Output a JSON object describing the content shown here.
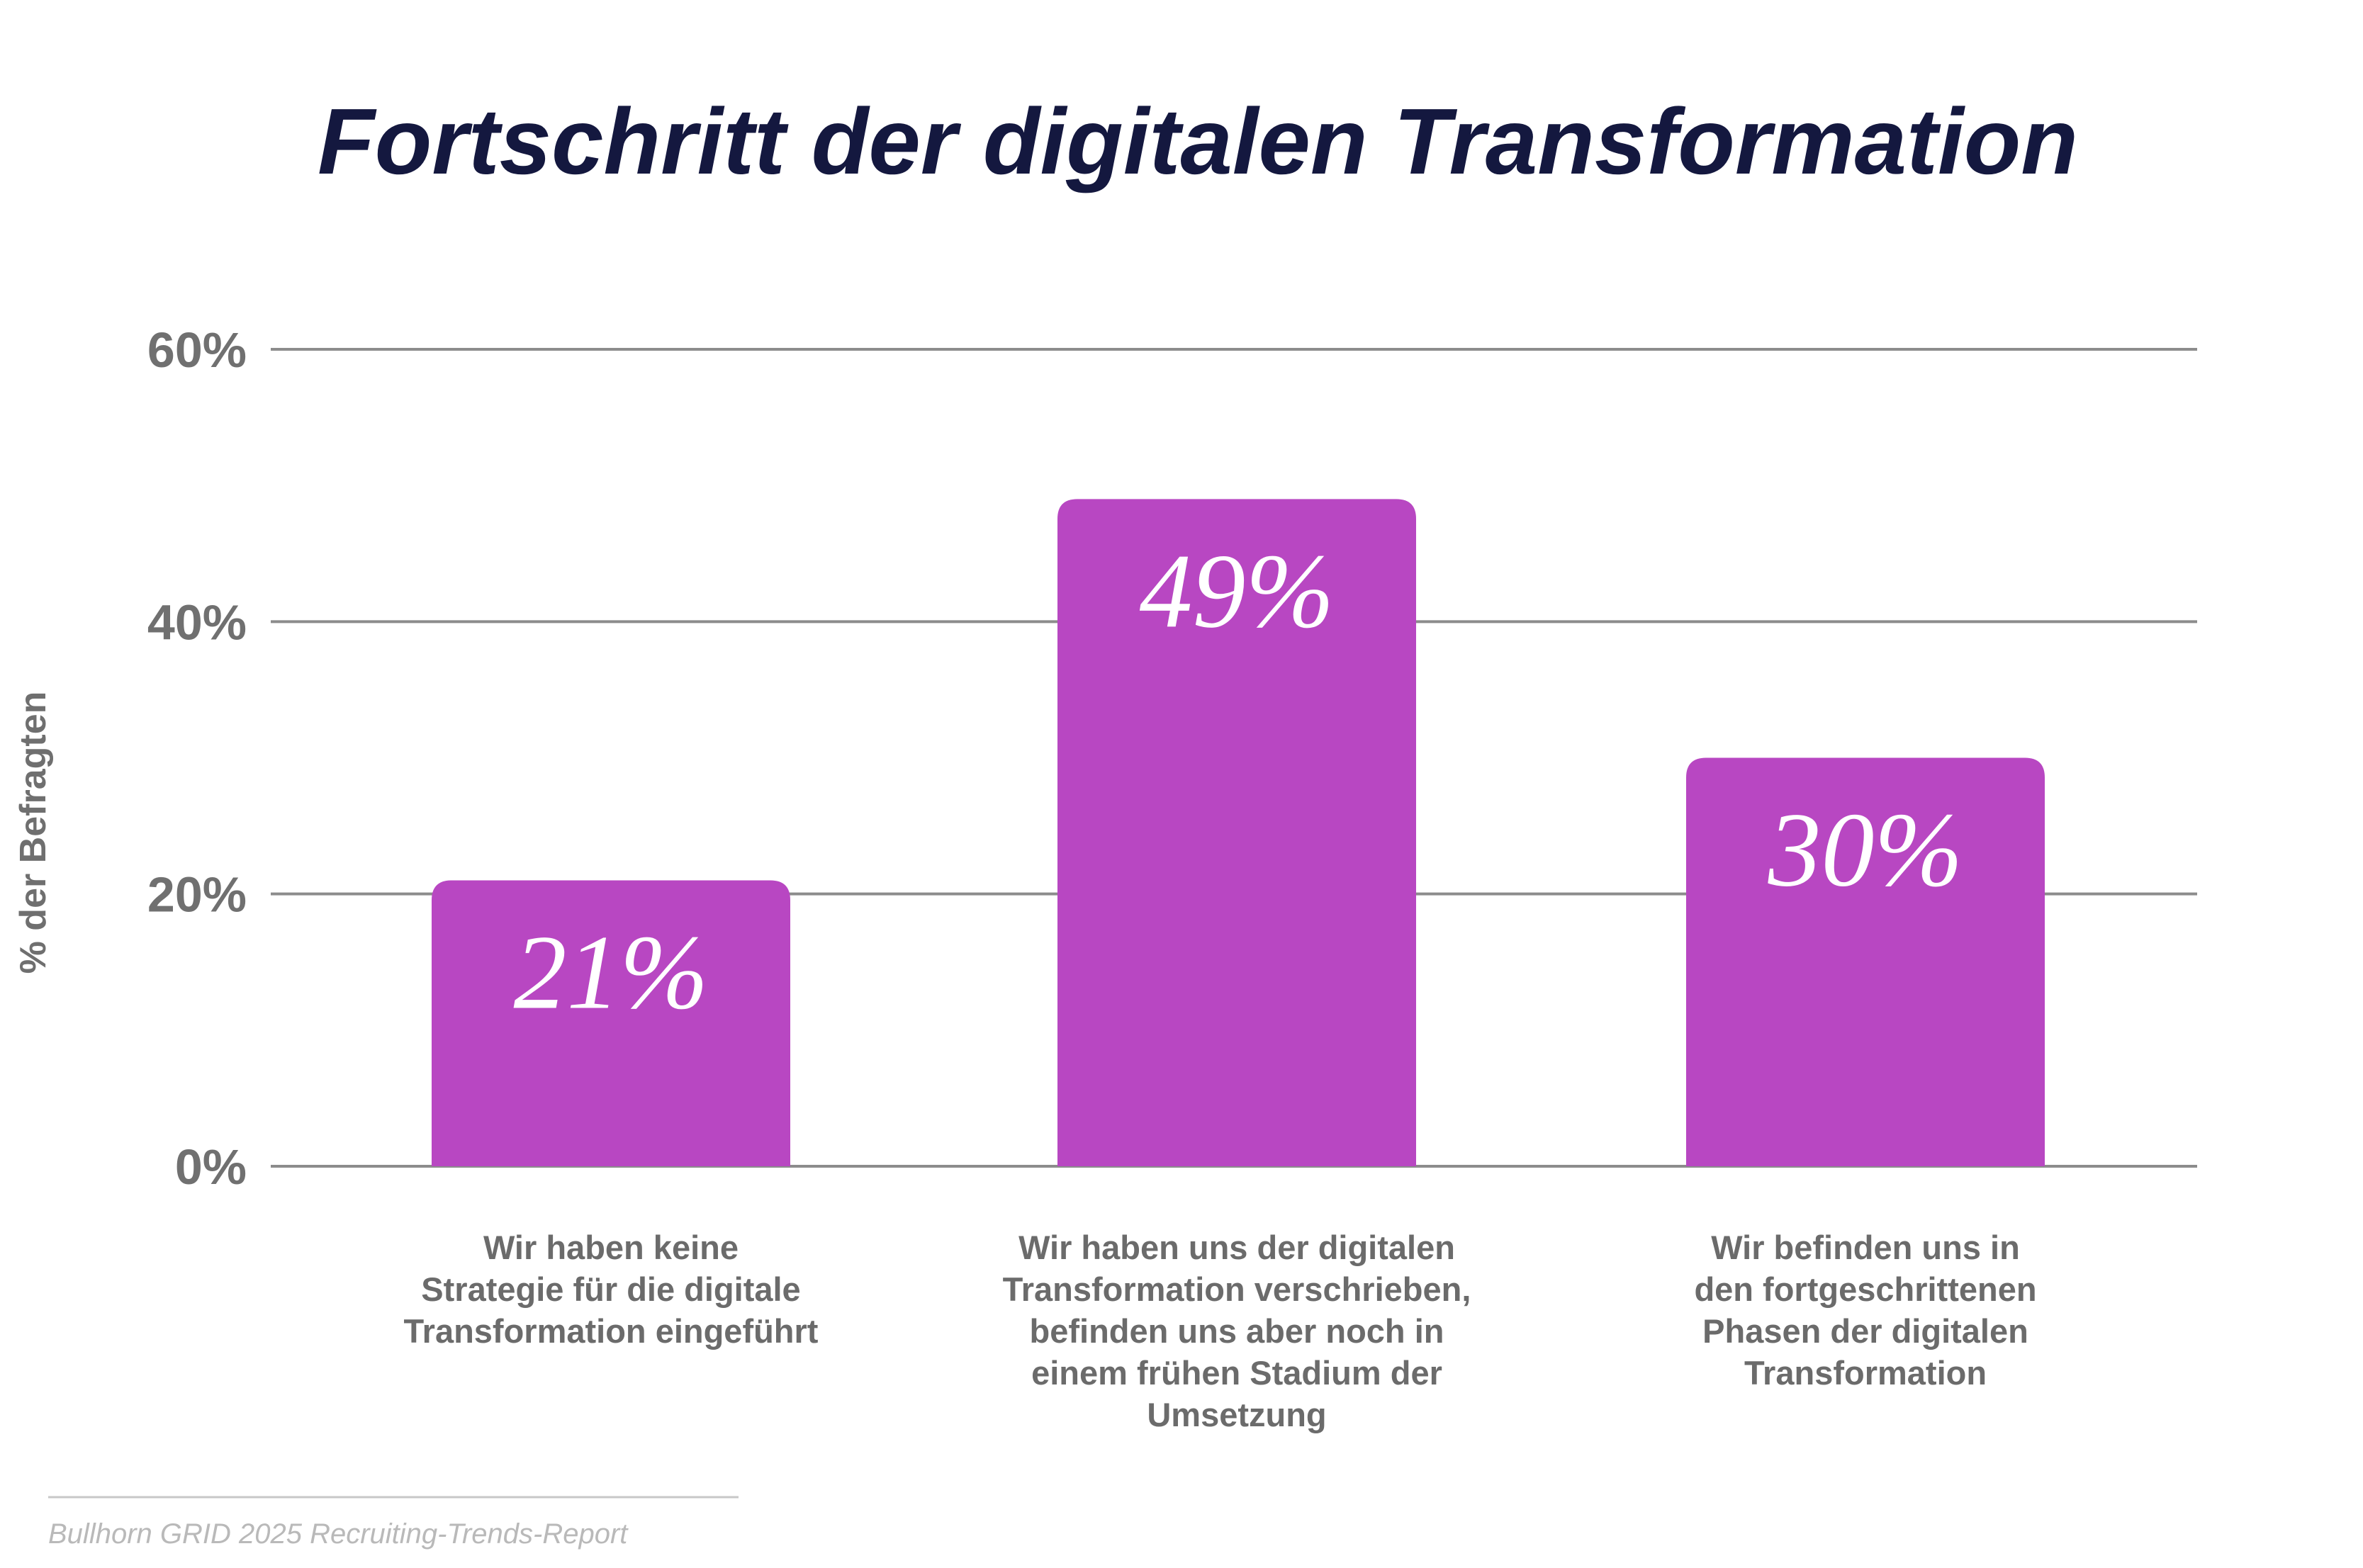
{
  "chart_data": {
    "type": "bar",
    "title": "Fortschritt der digitalen Transformation",
    "ylabel": "% der Befragten",
    "xlabel": "",
    "ylim": [
      0,
      60
    ],
    "yticks": [
      "0%",
      "20%",
      "40%",
      "60%"
    ],
    "categories": [
      [
        "Wir haben keine",
        "Strategie für die digitale",
        "Transformation eingeführt"
      ],
      [
        "Wir haben uns der digitalen",
        "Transformation verschrieben,",
        "befinden uns aber noch in",
        "einem frühen Stadium der",
        "Umsetzung"
      ],
      [
        "Wir befinden uns in",
        "den fortgeschrittenen",
        "Phasen der digitalen",
        "Transformation"
      ]
    ],
    "values": [
      21,
      49,
      30
    ],
    "data_labels": [
      "21%",
      "49%",
      "30%"
    ],
    "bar_color": "#b847c2",
    "grid": true,
    "legend": "none"
  },
  "source": "Bullhorn GRID 2025 Recruiting-Trends-Report"
}
